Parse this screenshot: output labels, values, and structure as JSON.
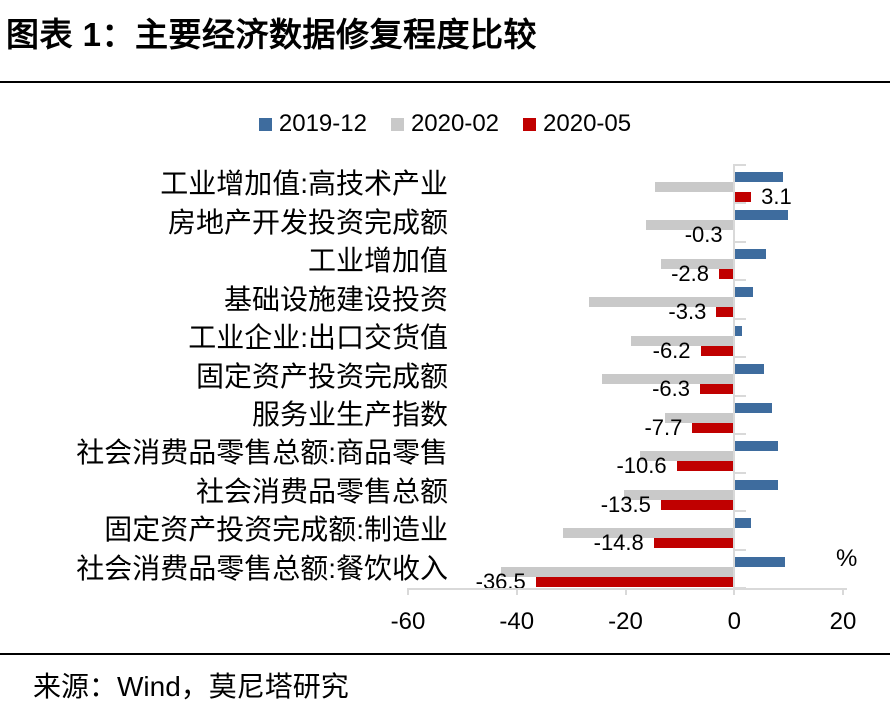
{
  "title": "图表 1：主要经济数据修复程度比较",
  "source": "来源：Wind，莫尼塔研究",
  "chart_data": {
    "type": "bar",
    "orientation": "horizontal",
    "title": "主要经济数据修复程度比较",
    "unit_label": "%",
    "xlim": [
      -60,
      20
    ],
    "x_ticks": [
      -60,
      -40,
      -20,
      0,
      20
    ],
    "grid": false,
    "legend_position": "top",
    "axis_color": "#D9D9D9",
    "text_color": "#000000",
    "categories": [
      "工业增加值:高技术产业",
      "房地产开发投资完成额",
      "工业增加值",
      "基础设施建设投资",
      "工业企业:出口交货值",
      "固定资产投资完成额",
      "服务业生产指数",
      "社会消费品零售总额:商品零售",
      "社会消费品零售总额",
      "固定资产投资完成额:制造业",
      "社会消费品零售总额:餐饮收入"
    ],
    "series": [
      {
        "name": "2019-12",
        "color": "#3E6C9E",
        "values": [
          8.9,
          9.9,
          5.9,
          3.5,
          1.5,
          5.4,
          6.9,
          8.1,
          8.1,
          3.1,
          9.4
        ],
        "data_labels": false
      },
      {
        "name": "2020-02",
        "color": "#C9C9C9",
        "values": [
          -14.5,
          -16.3,
          -13.5,
          -26.8,
          -18.9,
          -24.3,
          -12.8,
          -17.4,
          -20.3,
          -31.5,
          -42.9
        ],
        "data_labels": false
      },
      {
        "name": "2020-05",
        "color": "#C00000",
        "values": [
          3.1,
          -0.3,
          -2.8,
          -3.3,
          -6.2,
          -6.3,
          -7.7,
          -10.6,
          -13.5,
          -14.8,
          -36.5
        ],
        "data_labels": true,
        "label_texts": [
          "3.1",
          "-0.3",
          "-2.8",
          "-3.3",
          "-6.2",
          "-6.3",
          "-7.7",
          "-10.6",
          "-13.5",
          "-14.8",
          "-36.5"
        ]
      }
    ]
  }
}
